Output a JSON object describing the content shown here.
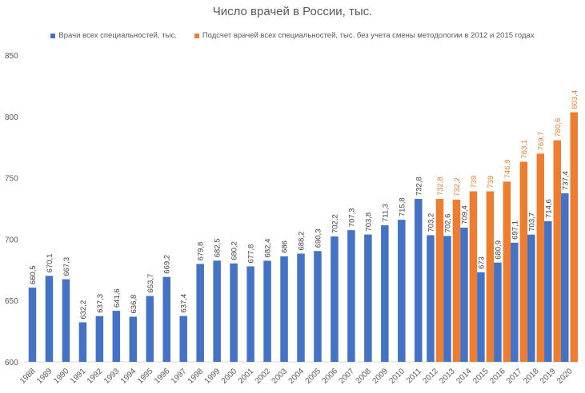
{
  "colors": {
    "series1": "#4472c4",
    "series2": "#ed7d31",
    "text": "#595959",
    "axis": "#d9d9d9",
    "label1": "#404040"
  },
  "chart_data": {
    "type": "bar",
    "title": "Число врачей в России, тыс.",
    "xlabel": "",
    "ylabel": "",
    "ylim": [
      600,
      850
    ],
    "yticks": [
      600,
      650,
      700,
      750,
      800,
      850
    ],
    "grid": false,
    "legend": "top",
    "categories": [
      "1988",
      "1989",
      "1990",
      "1991",
      "1992",
      "1993",
      "1994",
      "1995",
      "1996",
      "1997",
      "1998",
      "1999",
      "2000",
      "2001",
      "2002",
      "2003",
      "2004",
      "2005",
      "2006",
      "2007",
      "2008",
      "2009",
      "2010",
      "2011",
      "2012",
      "2013",
      "2014",
      "2015",
      "2016",
      "2017",
      "2018",
      "2019",
      "2020"
    ],
    "series": [
      {
        "name": "Врачи всех специальностей, тыс.",
        "values": [
          660.5,
          670.1,
          667.3,
          632.2,
          637.3,
          641.6,
          636.8,
          653.7,
          669.2,
          637.4,
          679.8,
          682.5,
          680.2,
          677.8,
          682.4,
          686,
          688.2,
          690.3,
          702.2,
          707.3,
          703.8,
          711.3,
          715.8,
          732.8,
          703.2,
          702.6,
          709.4,
          673,
          680.9,
          697.1,
          703.7,
          714.6,
          737.4
        ],
        "labels": [
          "660,5",
          "670,1",
          "667,3",
          "632,2",
          "637,3",
          "641,6",
          "636,8",
          "653,7",
          "669,2",
          "637,4",
          "679,8",
          "682,5",
          "680,2",
          "677,8",
          "682,4",
          "686",
          "688,2",
          "690,3",
          "702,2",
          "707,3",
          "703,8",
          "711,3",
          "715,8",
          "732,8",
          "703,2",
          "702,6",
          "709,4",
          "673",
          "680,9",
          "697,1",
          "703,7",
          "714,6",
          "737,4"
        ]
      },
      {
        "name": "Подсчет врачей всех специальностей, тыс. без учета смены методологии в 2012 и 2015 годах",
        "values": [
          null,
          null,
          null,
          null,
          null,
          null,
          null,
          null,
          null,
          null,
          null,
          null,
          null,
          null,
          null,
          null,
          null,
          null,
          null,
          null,
          null,
          null,
          null,
          null,
          732.8,
          732.2,
          739,
          739,
          746.9,
          763.1,
          769.7,
          780.6,
          803.4
        ],
        "labels": [
          null,
          null,
          null,
          null,
          null,
          null,
          null,
          null,
          null,
          null,
          null,
          null,
          null,
          null,
          null,
          null,
          null,
          null,
          null,
          null,
          null,
          null,
          null,
          null,
          "732,8",
          "732,2",
          "739",
          "739",
          "746,9",
          "763,1",
          "769,7",
          "780,6",
          "803,4"
        ]
      }
    ]
  }
}
